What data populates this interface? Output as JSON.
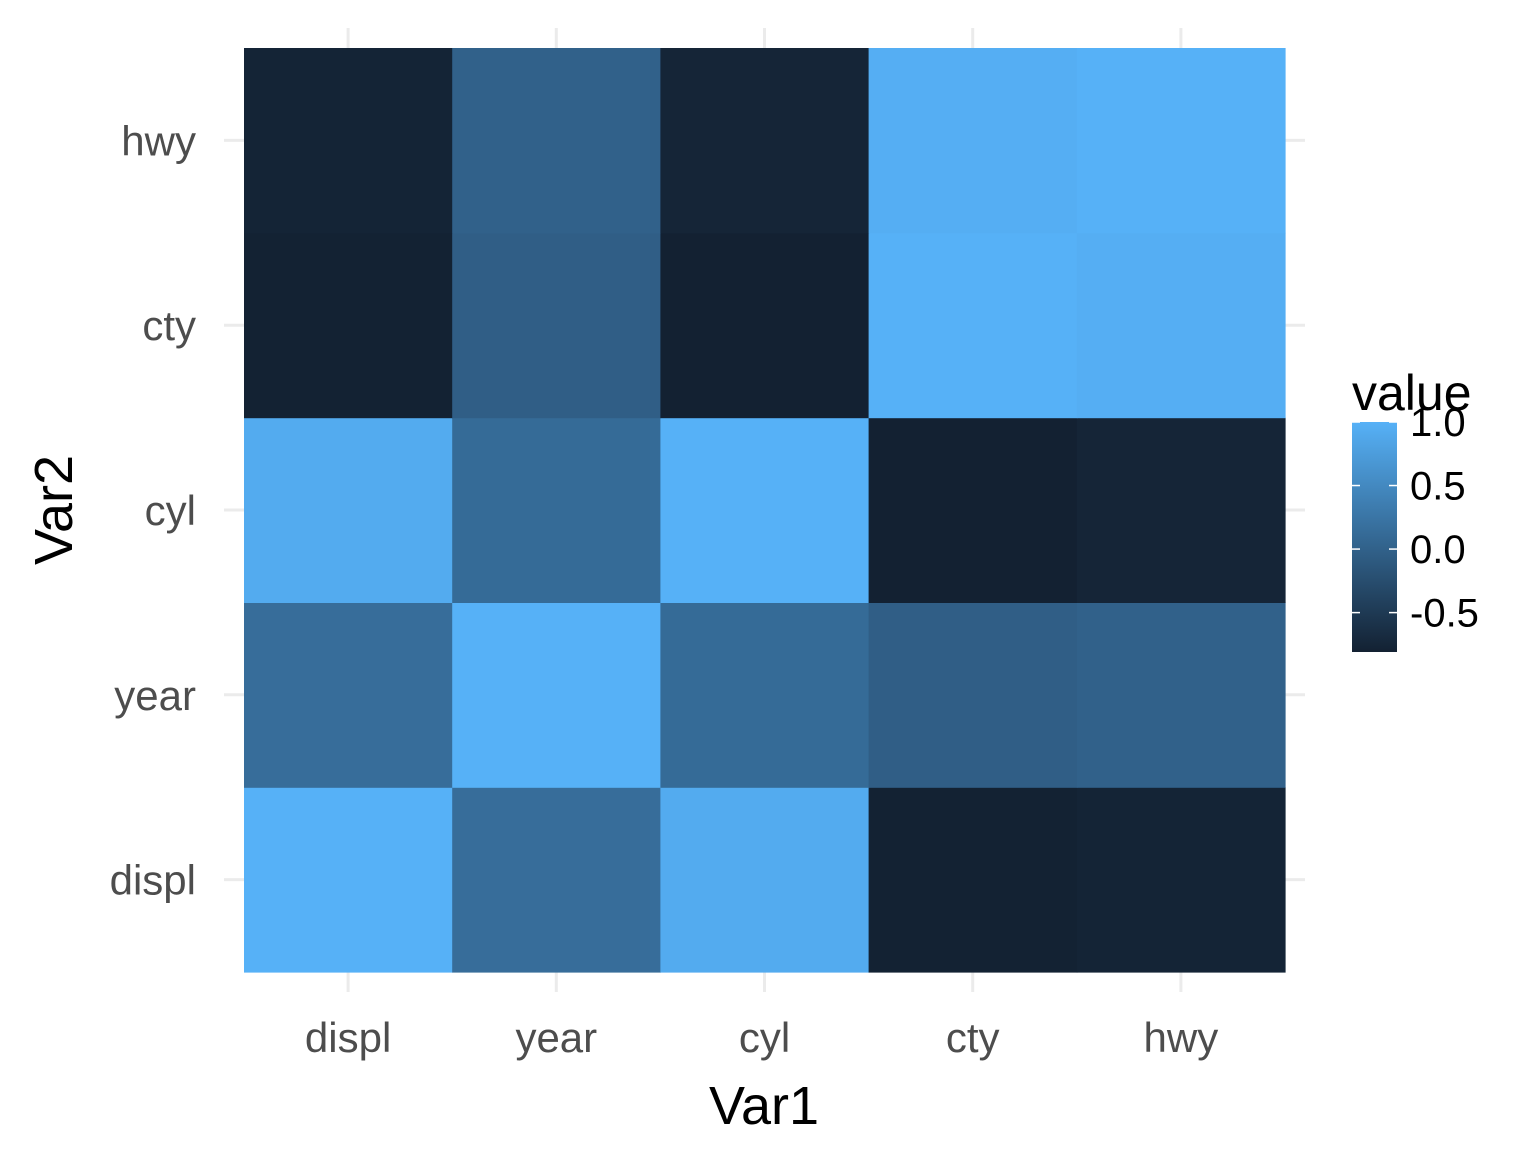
{
  "chart_data": {
    "type": "heatmap",
    "x": [
      "displ",
      "year",
      "cyl",
      "cty",
      "hwy"
    ],
    "y": [
      "displ",
      "year",
      "cyl",
      "cty",
      "hwy"
    ],
    "xlabel": "Var1",
    "ylabel": "Var2",
    "z": [
      [
        1.0,
        0.15,
        0.93,
        -0.8,
        -0.77
      ],
      [
        0.15,
        1.0,
        0.12,
        -0.04,
        0.0
      ],
      [
        0.93,
        0.12,
        1.0,
        -0.81,
        -0.76
      ],
      [
        -0.8,
        -0.04,
        -0.81,
        1.0,
        0.96
      ],
      [
        -0.77,
        0.0,
        -0.76,
        0.96,
        1.0
      ]
    ],
    "zlim": [
      -0.81,
      1.0
    ],
    "legend": {
      "title": "value",
      "ticks": [
        1.0,
        0.5,
        0.0,
        -0.5
      ],
      "tick_labels": [
        "1.0",
        "0.5",
        "0.0",
        "-0.5"
      ],
      "placement": "right"
    },
    "colors": {
      "low": "#132132",
      "high": "#56b1f7",
      "grid": "#ebebeb"
    },
    "grid": true
  }
}
